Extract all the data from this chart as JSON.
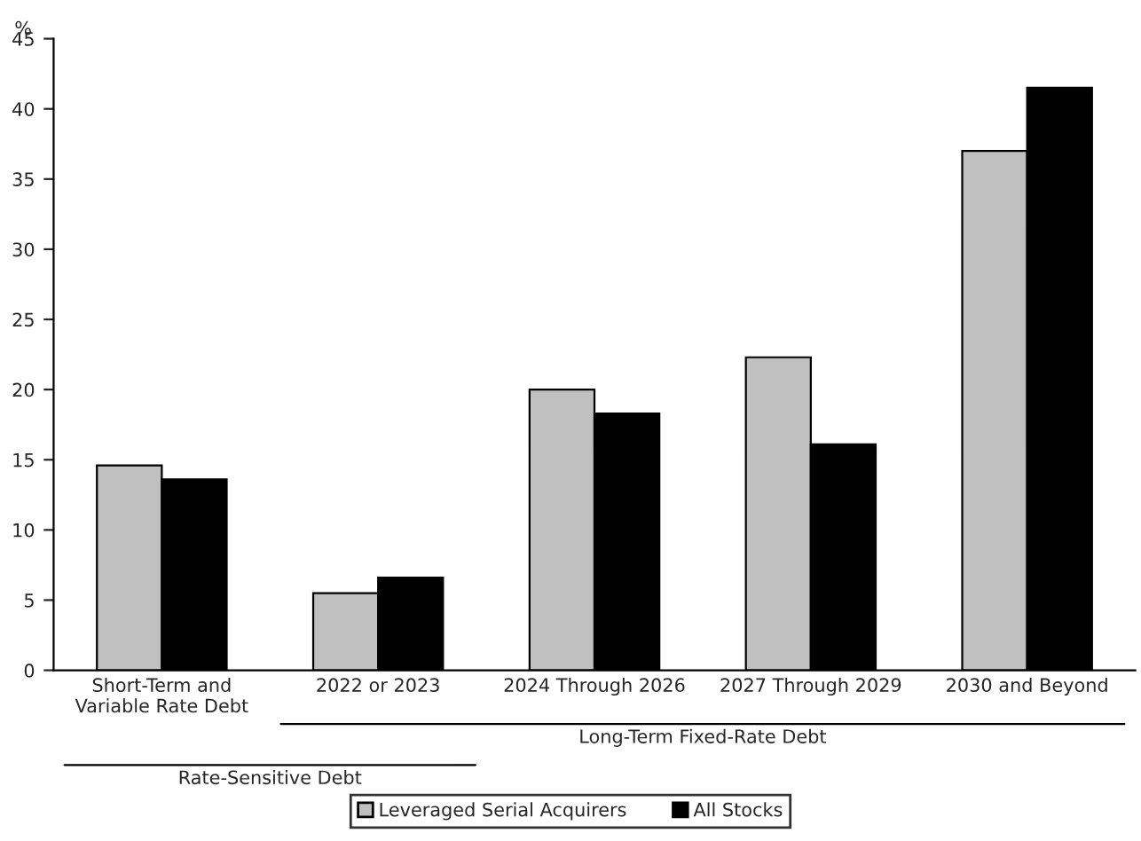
{
  "chart_data": {
    "type": "bar",
    "ylabel": "%",
    "categories": [
      "Short-Term and\nVariable Rate Debt",
      "2022 or 2023",
      "2024 Through 2026",
      "2027 Through 2029",
      "2030 and Beyond"
    ],
    "series": [
      {
        "name": "Leveraged Serial Acquirers",
        "color": "#c0c0c0",
        "values": [
          14.6,
          5.5,
          20.0,
          22.3,
          37.0
        ]
      },
      {
        "name": "All Stocks",
        "color": "#000000",
        "values": [
          13.6,
          6.6,
          18.3,
          16.1,
          41.5
        ]
      }
    ],
    "annotations": [
      "Long-Term Fixed-Rate Debt",
      "Rate-Sensitive Debt"
    ],
    "ylim": [
      0,
      45
    ],
    "yticks": [
      0,
      5,
      10,
      15,
      20,
      25,
      30,
      35,
      40,
      45
    ],
    "grid": false,
    "legend": "bottom"
  }
}
